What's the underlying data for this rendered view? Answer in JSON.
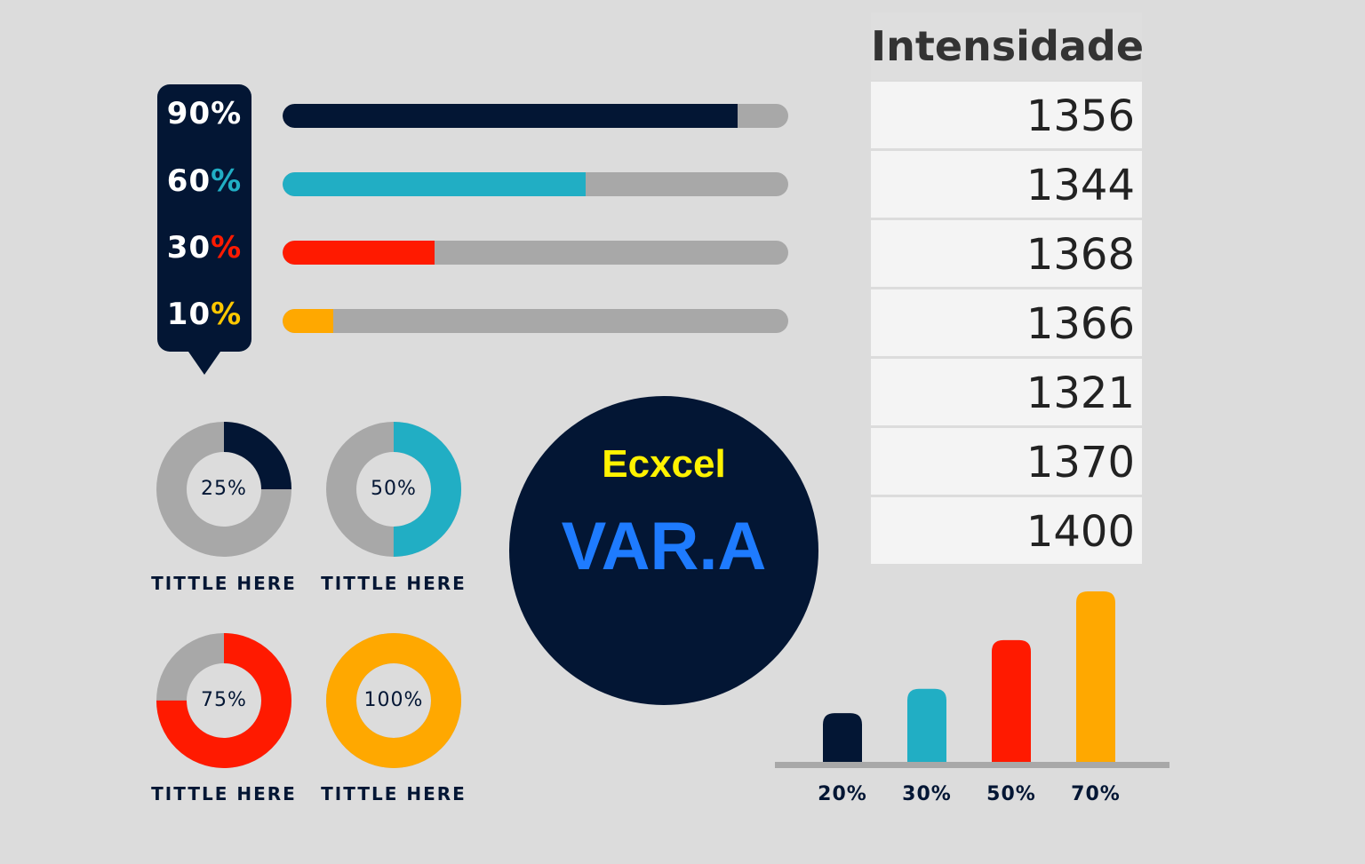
{
  "progress": {
    "items": [
      {
        "number": "90",
        "sign": "%",
        "value": 0.9,
        "color": "#031634",
        "sign_color": "#ffffff"
      },
      {
        "number": "60",
        "sign": "%",
        "value": 0.6,
        "color": "#21aec4",
        "sign_color": "#21aec4"
      },
      {
        "number": "30",
        "sign": "%",
        "value": 0.3,
        "color": "#ff1a00",
        "sign_color": "#ff1a00"
      },
      {
        "number": "10",
        "sign": "%",
        "value": 0.1,
        "color": "#ffa800",
        "sign_color": "#ffc800"
      }
    ],
    "track_color": "#a8a8a8"
  },
  "donuts": [
    {
      "label": "25%",
      "value": 0.25,
      "color": "#031634",
      "caption": "TITTLE HERE"
    },
    {
      "label": "50%",
      "value": 0.5,
      "color": "#21aec4",
      "caption": "TITTLE HERE"
    },
    {
      "label": "75%",
      "value": 0.75,
      "color": "#ff1a00",
      "caption": "TITTLE HERE"
    },
    {
      "label": "100%",
      "value": 1.0,
      "color": "#ffa800",
      "caption": "TITTLE HERE"
    }
  ],
  "badge": {
    "title": "Ecxcel",
    "subtitle": "VAR.A",
    "title_color": "#fff200",
    "subtitle_color": "#1e7bff",
    "bg": "#031634"
  },
  "table": {
    "header": "Intensidade",
    "values": [
      "1356",
      "1344",
      "1368",
      "1366",
      "1321",
      "1370",
      "1400"
    ]
  },
  "chart_data": {
    "type": "bar",
    "categories": [
      "20%",
      "30%",
      "50%",
      "70%"
    ],
    "values": [
      20,
      30,
      50,
      70
    ],
    "colors": [
      "#031634",
      "#21aec4",
      "#ff1a00",
      "#ffa800"
    ],
    "title": "",
    "xlabel": "",
    "ylabel": "",
    "ylim": [
      0,
      70
    ],
    "grid": false
  }
}
